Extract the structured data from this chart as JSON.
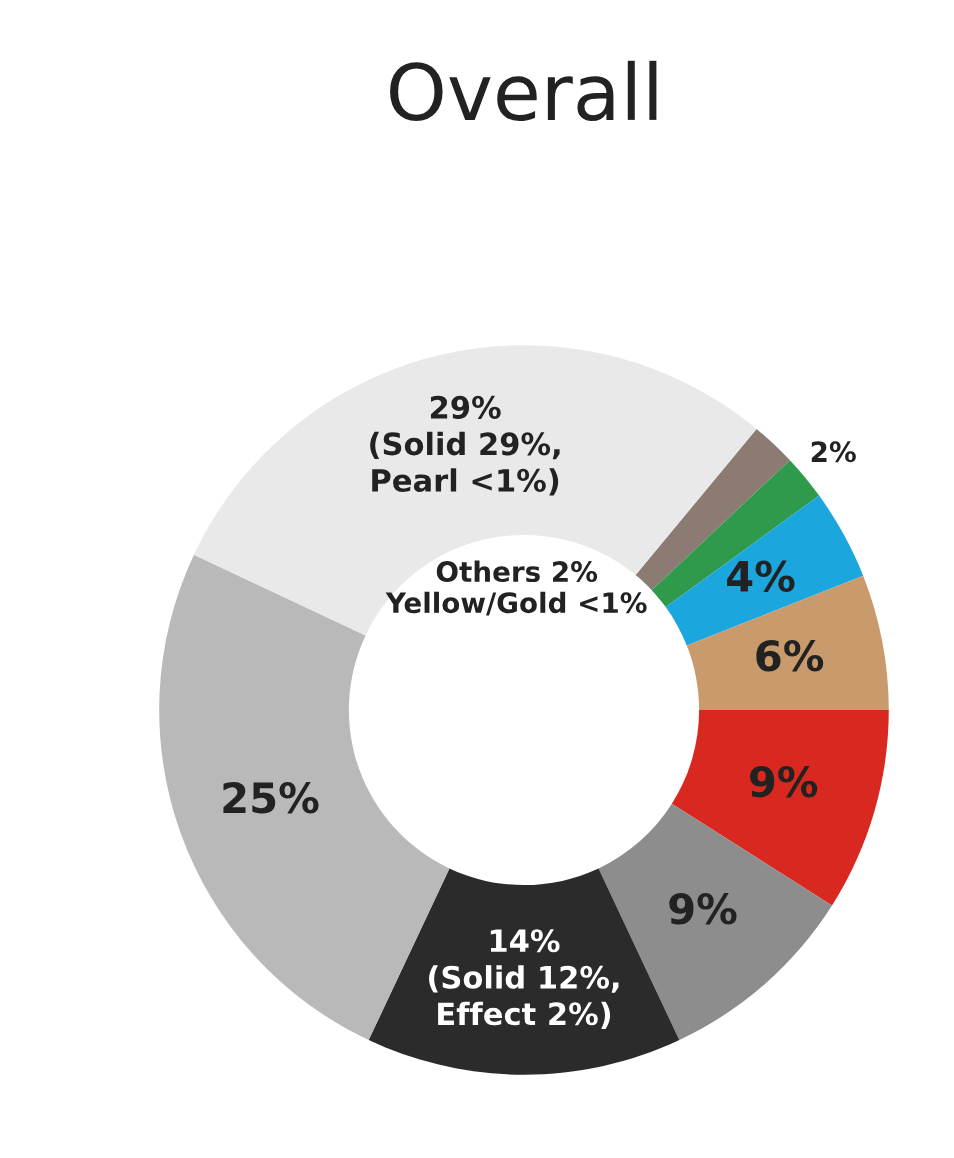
{
  "chart_data": {
    "type": "donut",
    "title": "Overall",
    "categories": [
      null,
      null,
      null,
      null,
      null,
      null,
      null,
      null,
      null
    ],
    "values": [
      2,
      2,
      4,
      6,
      9,
      9,
      14,
      25,
      29
    ],
    "colors": [
      "#8c7b72",
      "#2f9a4c",
      "#1ba6de",
      "#c99a6c",
      "#d8281f",
      "#8d8d8d",
      "#2b2b2b",
      "#b9b9b9",
      "#e9e9e9"
    ],
    "value_labels": [
      null,
      "2%",
      "4%",
      "6%",
      "9%",
      "9%",
      "14%\n(Solid 12%,\nEffect 2%)",
      "25%",
      "29%\n(Solid 29%,\nPearl <1%)"
    ],
    "annotations": [
      "Others 2%\nYellow/Gold <1%"
    ]
  }
}
